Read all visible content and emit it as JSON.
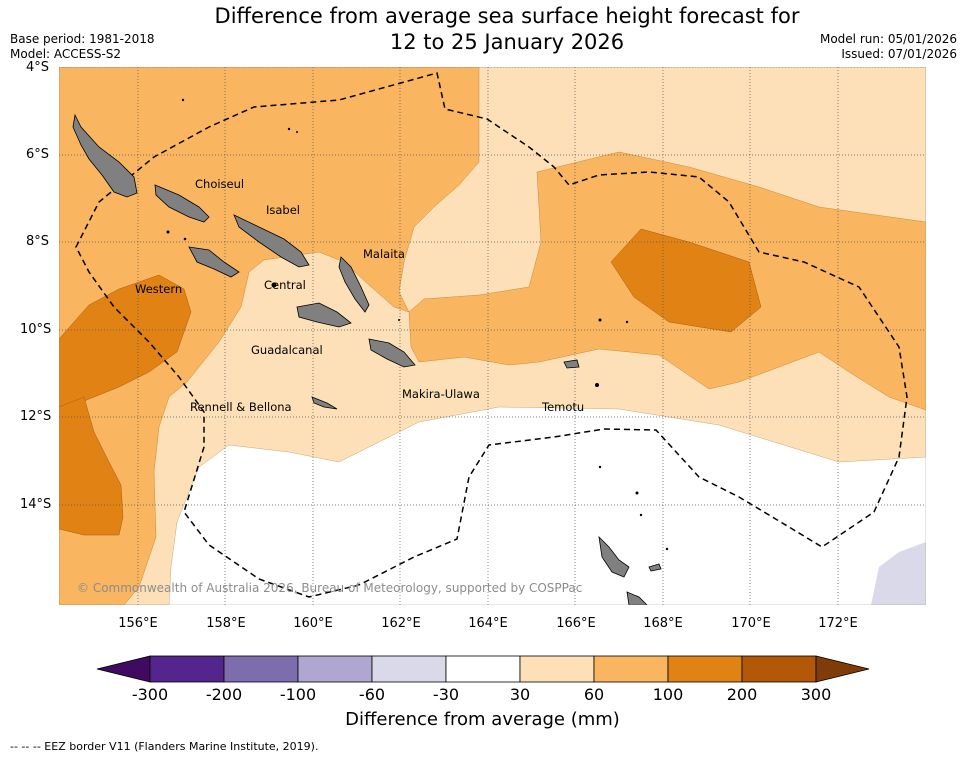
{
  "title_line1": "Difference from average sea surface height forecast for",
  "title_line2": "12 to 25 January 2026",
  "base_period": "Base period: 1981-2018",
  "model": "Model: ACCESS-S2",
  "model_run": "Model run: 05/01/2026",
  "issued": "Issued: 07/01/2026",
  "lat_ticks": [
    "4°S",
    "6°S",
    "8°S",
    "10°S",
    "12°S",
    "14°S"
  ],
  "lon_ticks": [
    "156°E",
    "158°E",
    "160°E",
    "162°E",
    "164°E",
    "166°E",
    "168°E",
    "170°E",
    "172°E"
  ],
  "places": {
    "choiseul": "Choiseul",
    "isabel": "Isabel",
    "malaita": "Malaita",
    "western": "Western",
    "central": "Central",
    "guadalcanal": "Guadalcanal",
    "makira": "Makira-Ulawa",
    "rennell": "Rennell & Bellona",
    "temotu": "Temotu"
  },
  "copyright": "© Commonwealth of Australia 2026, Bureau of Meteorology, supported by COSPPac",
  "colorbar": {
    "title": "Difference from average (mm)",
    "labels": [
      "-300",
      "-200",
      "-100",
      "-60",
      "-30",
      "30",
      "60",
      "100",
      "200",
      "300"
    ],
    "colors": [
      "#3f0a5f",
      "#54258c",
      "#7e6dac",
      "#afa7d2",
      "#d9d9ea",
      "#ffffff",
      "#fde0b7",
      "#f9b560",
      "#e08214",
      "#b35806",
      "#7f3b08"
    ]
  },
  "footnote": "-- -- -- EEZ border V11 (Flanders Marine Institute, 2019)."
}
